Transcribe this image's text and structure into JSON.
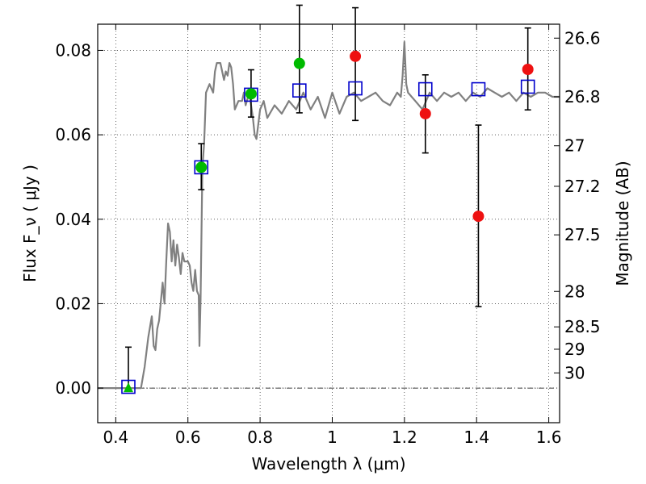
{
  "chart_data": {
    "type": "scatter",
    "xlabel": "Wavelength  λ (μm)",
    "ylabel": "Flux  F_ν  ( μJy )",
    "ylabel_right": "Magnitude (AB)",
    "xlim": [
      0.35,
      1.63
    ],
    "ylim": [
      -0.0082,
      0.0862
    ],
    "grid": true,
    "x_ticks": [
      0.4,
      0.6,
      0.8,
      1.0,
      1.2,
      1.4,
      1.6
    ],
    "x_tick_labels": [
      "0.4",
      "0.6",
      "0.8",
      "1",
      "1.2",
      "1.4",
      "1.6"
    ],
    "y_ticks": [
      0.0,
      0.02,
      0.04,
      0.06,
      0.08
    ],
    "y_tick_labels": [
      "0.00",
      "0.02",
      "0.04",
      "0.06",
      "0.08"
    ],
    "right_ticks": [
      {
        "label": "26.6",
        "flux": 0.0829
      },
      {
        "label": "26.8",
        "flux": 0.069
      },
      {
        "label": "27",
        "flux": 0.0574
      },
      {
        "label": "27.2",
        "flux": 0.0478
      },
      {
        "label": "27.5",
        "flux": 0.0363
      },
      {
        "label": "28",
        "flux": 0.0229
      },
      {
        "label": "28.5",
        "flux": 0.0145
      },
      {
        "label": "29",
        "flux": 0.0092
      },
      {
        "label": "30",
        "flux": 0.0036
      }
    ],
    "series": [
      {
        "role": "model-spectrum",
        "color": "#808080",
        "x": [
          0.35,
          0.4,
          0.46,
          0.47,
          0.48,
          0.49,
          0.5,
          0.505,
          0.51,
          0.515,
          0.52,
          0.53,
          0.535,
          0.54,
          0.545,
          0.55,
          0.555,
          0.56,
          0.565,
          0.57,
          0.575,
          0.58,
          0.585,
          0.59,
          0.6,
          0.605,
          0.61,
          0.615,
          0.62,
          0.625,
          0.63,
          0.632,
          0.635,
          0.64,
          0.645,
          0.65,
          0.66,
          0.67,
          0.675,
          0.68,
          0.69,
          0.7,
          0.705,
          0.71,
          0.715,
          0.72,
          0.725,
          0.73,
          0.74,
          0.75,
          0.755,
          0.76,
          0.77,
          0.78,
          0.785,
          0.79,
          0.8,
          0.81,
          0.82,
          0.84,
          0.86,
          0.88,
          0.9,
          0.92,
          0.94,
          0.96,
          0.98,
          1.0,
          1.02,
          1.04,
          1.06,
          1.08,
          1.1,
          1.12,
          1.14,
          1.16,
          1.18,
          1.19,
          1.195,
          1.2,
          1.205,
          1.21,
          1.23,
          1.25,
          1.27,
          1.29,
          1.31,
          1.33,
          1.35,
          1.37,
          1.39,
          1.41,
          1.43,
          1.45,
          1.47,
          1.49,
          1.51,
          1.53,
          1.55,
          1.57,
          1.59,
          1.61,
          1.63
        ],
        "y": [
          0.0,
          0.0,
          0.0,
          0.0,
          0.005,
          0.012,
          0.017,
          0.01,
          0.009,
          0.014,
          0.016,
          0.025,
          0.02,
          0.03,
          0.039,
          0.037,
          0.03,
          0.035,
          0.029,
          0.034,
          0.031,
          0.027,
          0.032,
          0.03,
          0.03,
          0.029,
          0.025,
          0.023,
          0.028,
          0.023,
          0.022,
          0.01,
          0.021,
          0.052,
          0.058,
          0.07,
          0.072,
          0.07,
          0.075,
          0.077,
          0.077,
          0.073,
          0.075,
          0.074,
          0.077,
          0.076,
          0.072,
          0.066,
          0.068,
          0.068,
          0.07,
          0.067,
          0.07,
          0.064,
          0.06,
          0.059,
          0.066,
          0.068,
          0.064,
          0.067,
          0.065,
          0.068,
          0.066,
          0.07,
          0.066,
          0.069,
          0.064,
          0.07,
          0.065,
          0.069,
          0.07,
          0.068,
          0.069,
          0.07,
          0.068,
          0.067,
          0.07,
          0.069,
          0.074,
          0.082,
          0.072,
          0.07,
          0.068,
          0.066,
          0.07,
          0.068,
          0.07,
          0.069,
          0.07,
          0.068,
          0.07,
          0.069,
          0.071,
          0.07,
          0.069,
          0.07,
          0.068,
          0.07,
          0.069,
          0.07,
          0.07,
          0.069,
          0.069
        ]
      },
      {
        "role": "model-photometry",
        "marker": "open-square",
        "color": "#0000cc",
        "x": [
          0.435,
          0.637,
          0.775,
          0.909,
          1.064,
          1.258,
          1.405,
          1.542
        ],
        "y": [
          0.0003,
          0.0523,
          0.0695,
          0.0705,
          0.071,
          0.0708,
          0.0708,
          0.0714
        ]
      },
      {
        "role": "observed-detections",
        "marker": "filled-circle",
        "color": "#00bb00",
        "x": [
          0.637,
          0.775,
          0.909
        ],
        "y": [
          0.0523,
          0.0697,
          0.0769
        ],
        "err_low": [
          0.0053,
          0.0055,
          0.0117
        ],
        "err_high": [
          0.0056,
          0.0057,
          0.0138
        ]
      },
      {
        "role": "observed-upper-limit",
        "marker": "filled-triangle",
        "color": "#00bb00",
        "x": [
          0.435
        ],
        "y": [
          0.0
        ],
        "err_low": [
          0.0
        ],
        "err_high": [
          0.0097
        ]
      },
      {
        "role": "observed-low-significance",
        "marker": "filled-circle",
        "color": "#ee1111",
        "x": [
          1.064,
          1.258,
          1.405,
          1.542
        ],
        "y": [
          0.0786,
          0.065,
          0.0407,
          0.0755
        ],
        "err_low": [
          0.0152,
          0.0093,
          0.0214,
          0.0096
        ],
        "err_high": [
          0.0115,
          0.0092,
          0.0216,
          0.0098
        ]
      }
    ]
  }
}
